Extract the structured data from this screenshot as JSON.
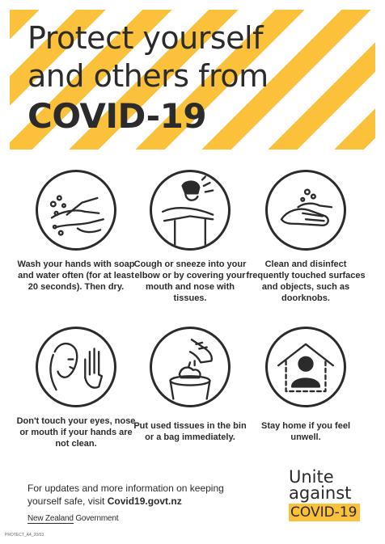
{
  "title": {
    "line1": "Protect yourself",
    "line2": "and others from",
    "line3": "COVID-19"
  },
  "tips": [
    {
      "icon": "handwash-icon",
      "caption": "Wash your hands with soap and water often (for at least 20 seconds). Then dry."
    },
    {
      "icon": "cough-elbow-icon",
      "caption": "Cough or sneeze into your elbow or by covering your mouth and nose with tissues."
    },
    {
      "icon": "disinfect-surface-icon",
      "caption": "Clean and disinfect frequently touched surfaces and objects, such as doorknobs."
    },
    {
      "icon": "no-face-touch-icon",
      "caption": "Don't touch your eyes, nose or mouth if your hands are not clean."
    },
    {
      "icon": "tissue-bin-icon",
      "caption": "Put used tissues in the bin or a bag immediately."
    },
    {
      "icon": "stay-home-icon",
      "caption": "Stay home if you feel unwell."
    }
  ],
  "info": {
    "text": "For updates and more information on keeping yourself safe, visit ",
    "link": "Covid19.govt.nz"
  },
  "gov": {
    "part1": "New Zealand",
    "part2": " Government"
  },
  "code": "PROTECT_A4_20/03",
  "unite": {
    "line1": "Unite",
    "line2": "against",
    "line3": "COVID-19"
  },
  "colors": {
    "accent": "#fbc13a",
    "ink": "#2b2b2b"
  }
}
